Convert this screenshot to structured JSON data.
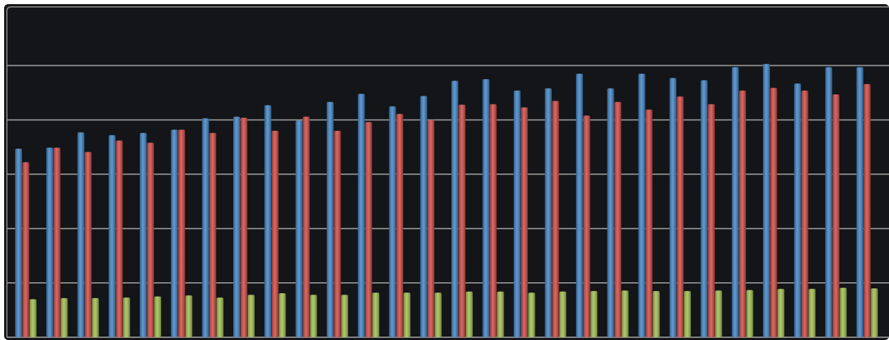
{
  "chart_data": {
    "type": "bar",
    "categories": [
      null,
      null,
      null,
      null,
      null,
      null,
      null,
      null,
      null,
      null,
      null,
      null,
      null,
      null,
      null,
      null,
      null,
      null,
      null,
      null,
      null,
      null,
      null,
      null,
      null,
      null,
      null,
      null
    ],
    "series": [
      {
        "color": "#3b7fc0",
        "values": [
          3.47,
          3.49,
          3.77,
          3.72,
          3.76,
          3.82,
          4.03,
          4.06,
          4.27,
          3.99,
          4.33,
          4.48,
          4.25,
          4.44,
          4.72,
          4.75,
          4.54,
          4.58,
          4.85,
          4.58,
          4.85,
          4.77,
          4.73,
          4.97,
          5.03,
          4.67,
          4.97,
          4.97
        ]
      },
      {
        "color": "#c9443f",
        "values": [
          3.22,
          3.49,
          3.41,
          3.62,
          3.58,
          3.82,
          3.76,
          4.04,
          3.8,
          4.06,
          3.8,
          3.96,
          4.11,
          4.0,
          4.28,
          4.29,
          4.23,
          4.35,
          4.08,
          4.33,
          4.19,
          4.43,
          4.29,
          4.54,
          4.59,
          4.54,
          4.47,
          4.66
        ]
      },
      {
        "color": "#9bbb4c",
        "values": [
          0.7,
          0.72,
          0.72,
          0.73,
          0.75,
          0.77,
          0.73,
          0.78,
          0.81,
          0.78,
          0.78,
          0.82,
          0.82,
          0.82,
          0.84,
          0.84,
          0.82,
          0.84,
          0.85,
          0.86,
          0.85,
          0.85,
          0.86,
          0.87,
          0.89,
          0.89,
          0.91,
          0.9
        ]
      }
    ],
    "ylim": [
      0,
      6.08
    ],
    "yticks": [
      0,
      1,
      2,
      3,
      4,
      5
    ],
    "grid": true
  }
}
